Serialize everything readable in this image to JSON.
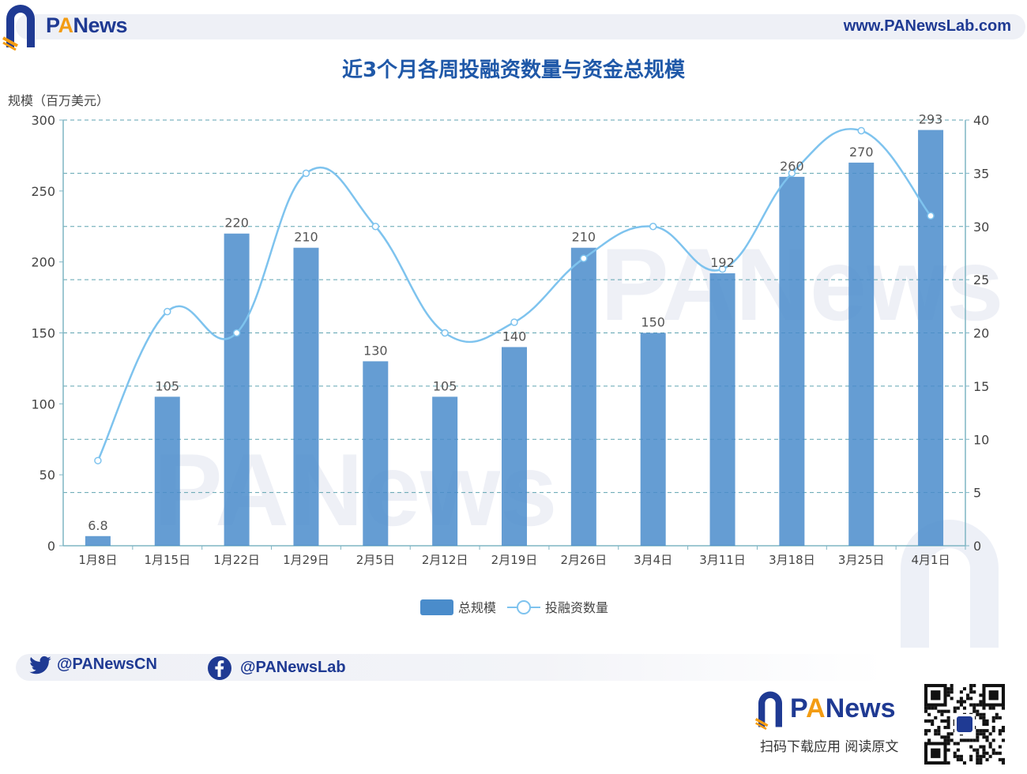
{
  "header": {
    "brand_p": "P",
    "brand_a": "A",
    "brand_rest": "News",
    "site": "www.PANewsLab.com"
  },
  "chart_data": {
    "type": "bar",
    "title": "近3个月各周投融资数量与资金总规模",
    "ylabel": "规模（百万美元）",
    "categories": [
      "1月8日",
      "1月15日",
      "1月22日",
      "1月29日",
      "2月5日",
      "2月12日",
      "2月19日",
      "2月26日",
      "3月4日",
      "3月11日",
      "3月18日",
      "3月25日",
      "4月1日"
    ],
    "series": [
      {
        "name": "总规模",
        "type": "bar",
        "axis": "left",
        "values": [
          6.8,
          105,
          220,
          210,
          130,
          105,
          140,
          210,
          150,
          192,
          260,
          270,
          293
        ],
        "labels": [
          "6.8",
          "105",
          "220",
          "210",
          "130",
          "105",
          "140",
          "210",
          "150",
          "192",
          "260",
          "270",
          "293"
        ],
        "color": "#4a8ccb"
      },
      {
        "name": "投融资数量",
        "type": "line",
        "axis": "right",
        "values": [
          8,
          22,
          20,
          35,
          30,
          20,
          21,
          27,
          30,
          26,
          35,
          39,
          31
        ],
        "color": "#7ec3ee"
      }
    ],
    "ylim_left": [
      0,
      300
    ],
    "yticks_left": [
      0,
      50,
      100,
      150,
      200,
      250,
      300
    ],
    "ylim_right": [
      0,
      40
    ],
    "yticks_right": [
      0,
      5,
      10,
      15,
      20,
      25,
      30,
      35,
      40
    ],
    "grid": true,
    "legend_position": "bottom-center"
  },
  "footer": {
    "twitter": "@PANewsCN",
    "facebook": "@PANewsLab",
    "brand_p": "P",
    "brand_a": "A",
    "brand_rest": "News",
    "download": "扫码下载应用  阅读原文"
  },
  "colors": {
    "brand_blue": "#1f3a93",
    "accent_orange": "#f39c12",
    "title_blue": "#1f58a8"
  }
}
